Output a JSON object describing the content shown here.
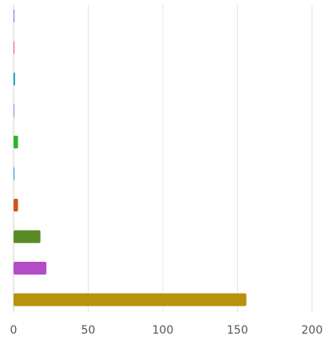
{
  "chart_data": {
    "type": "bar",
    "orientation": "horizontal",
    "title": "",
    "xlabel": "",
    "ylabel": "",
    "xlim": [
      0,
      200
    ],
    "x_ticks": [
      0,
      50,
      100,
      150,
      200
    ],
    "x_tick_labels": [
      "0",
      "50",
      "100",
      "150",
      "200"
    ],
    "grid": "vertical",
    "legend": "none",
    "values": [
      0.3,
      0.3,
      1,
      0.3,
      3,
      0.2,
      3,
      18,
      22,
      156
    ],
    "colors": [
      "#9b7fe6",
      "#e86aa8",
      "#17a3b0",
      "#b595e8",
      "#2cb52c",
      "#4a9fe0",
      "#d2561a",
      "#5a8a26",
      "#b44cc8",
      "#b8920a"
    ]
  }
}
